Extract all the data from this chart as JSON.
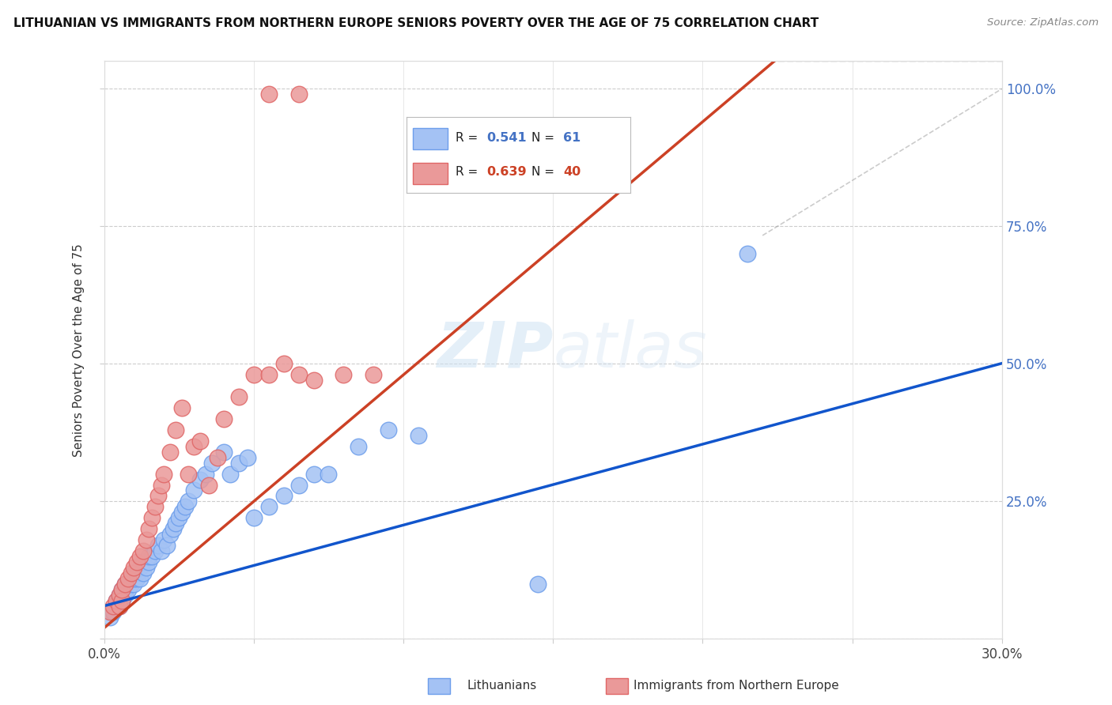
{
  "title": "LITHUANIAN VS IMMIGRANTS FROM NORTHERN EUROPE SENIORS POVERTY OVER THE AGE OF 75 CORRELATION CHART",
  "source": "Source: ZipAtlas.com",
  "ylabel": "Seniors Poverty Over the Age of 75",
  "xlim": [
    0.0,
    0.3
  ],
  "ylim": [
    0.0,
    1.05
  ],
  "xticks": [
    0.0,
    0.05,
    0.1,
    0.15,
    0.2,
    0.25,
    0.3
  ],
  "xticklabels": [
    "0.0%",
    "",
    "",
    "",
    "",
    "",
    "30.0%"
  ],
  "yticks": [
    0.0,
    0.25,
    0.5,
    0.75,
    1.0
  ],
  "yticklabels": [
    "",
    "25.0%",
    "50.0%",
    "75.0%",
    "100.0%"
  ],
  "R_blue": "0.541",
  "N_blue": "61",
  "R_pink": "0.639",
  "N_pink": "40",
  "blue_scatter_color": "#a4c2f4",
  "blue_scatter_edge": "#6d9eeb",
  "pink_scatter_color": "#ea9999",
  "pink_scatter_edge": "#e06666",
  "blue_line_color": "#1155cc",
  "pink_line_color": "#cc4125",
  "watermark_color": "#cfe2f3",
  "legend_blue_label": "Lithuanians",
  "legend_pink_label": "Immigrants from Northern Europe",
  "blue_x": [
    0.002,
    0.003,
    0.004,
    0.004,
    0.005,
    0.005,
    0.005,
    0.006,
    0.006,
    0.006,
    0.007,
    0.007,
    0.007,
    0.008,
    0.008,
    0.009,
    0.009,
    0.01,
    0.01,
    0.01,
    0.011,
    0.011,
    0.012,
    0.012,
    0.013,
    0.013,
    0.014,
    0.015,
    0.015,
    0.016,
    0.017,
    0.018,
    0.019,
    0.02,
    0.021,
    0.022,
    0.023,
    0.024,
    0.025,
    0.026,
    0.027,
    0.028,
    0.03,
    0.032,
    0.034,
    0.036,
    0.04,
    0.042,
    0.045,
    0.048,
    0.05,
    0.055,
    0.06,
    0.065,
    0.07,
    0.075,
    0.085,
    0.095,
    0.105,
    0.145,
    0.215
  ],
  "blue_y": [
    0.04,
    0.05,
    0.06,
    0.07,
    0.06,
    0.07,
    0.08,
    0.07,
    0.08,
    0.09,
    0.08,
    0.09,
    0.1,
    0.09,
    0.1,
    0.1,
    0.11,
    0.1,
    0.11,
    0.12,
    0.11,
    0.12,
    0.11,
    0.13,
    0.12,
    0.14,
    0.13,
    0.14,
    0.15,
    0.15,
    0.16,
    0.17,
    0.16,
    0.18,
    0.17,
    0.19,
    0.2,
    0.21,
    0.22,
    0.23,
    0.24,
    0.25,
    0.27,
    0.29,
    0.3,
    0.32,
    0.34,
    0.3,
    0.32,
    0.33,
    0.22,
    0.24,
    0.26,
    0.28,
    0.3,
    0.3,
    0.35,
    0.38,
    0.37,
    0.1,
    0.7
  ],
  "pink_x": [
    0.002,
    0.003,
    0.004,
    0.005,
    0.005,
    0.006,
    0.006,
    0.007,
    0.008,
    0.009,
    0.01,
    0.011,
    0.012,
    0.013,
    0.014,
    0.015,
    0.016,
    0.017,
    0.018,
    0.019,
    0.02,
    0.022,
    0.024,
    0.026,
    0.028,
    0.03,
    0.032,
    0.035,
    0.038,
    0.04,
    0.045,
    0.05,
    0.055,
    0.06,
    0.065,
    0.07,
    0.08,
    0.09,
    0.055,
    0.065
  ],
  "pink_y": [
    0.05,
    0.06,
    0.07,
    0.06,
    0.08,
    0.07,
    0.09,
    0.1,
    0.11,
    0.12,
    0.13,
    0.14,
    0.15,
    0.16,
    0.18,
    0.2,
    0.22,
    0.24,
    0.26,
    0.28,
    0.3,
    0.34,
    0.38,
    0.42,
    0.3,
    0.35,
    0.36,
    0.28,
    0.33,
    0.4,
    0.44,
    0.48,
    0.48,
    0.5,
    0.48,
    0.47,
    0.48,
    0.48,
    0.99,
    0.99
  ],
  "blue_line_slope": 1.47,
  "blue_line_intercept": 0.06,
  "pink_line_slope": 4.6,
  "pink_line_intercept": 0.02
}
